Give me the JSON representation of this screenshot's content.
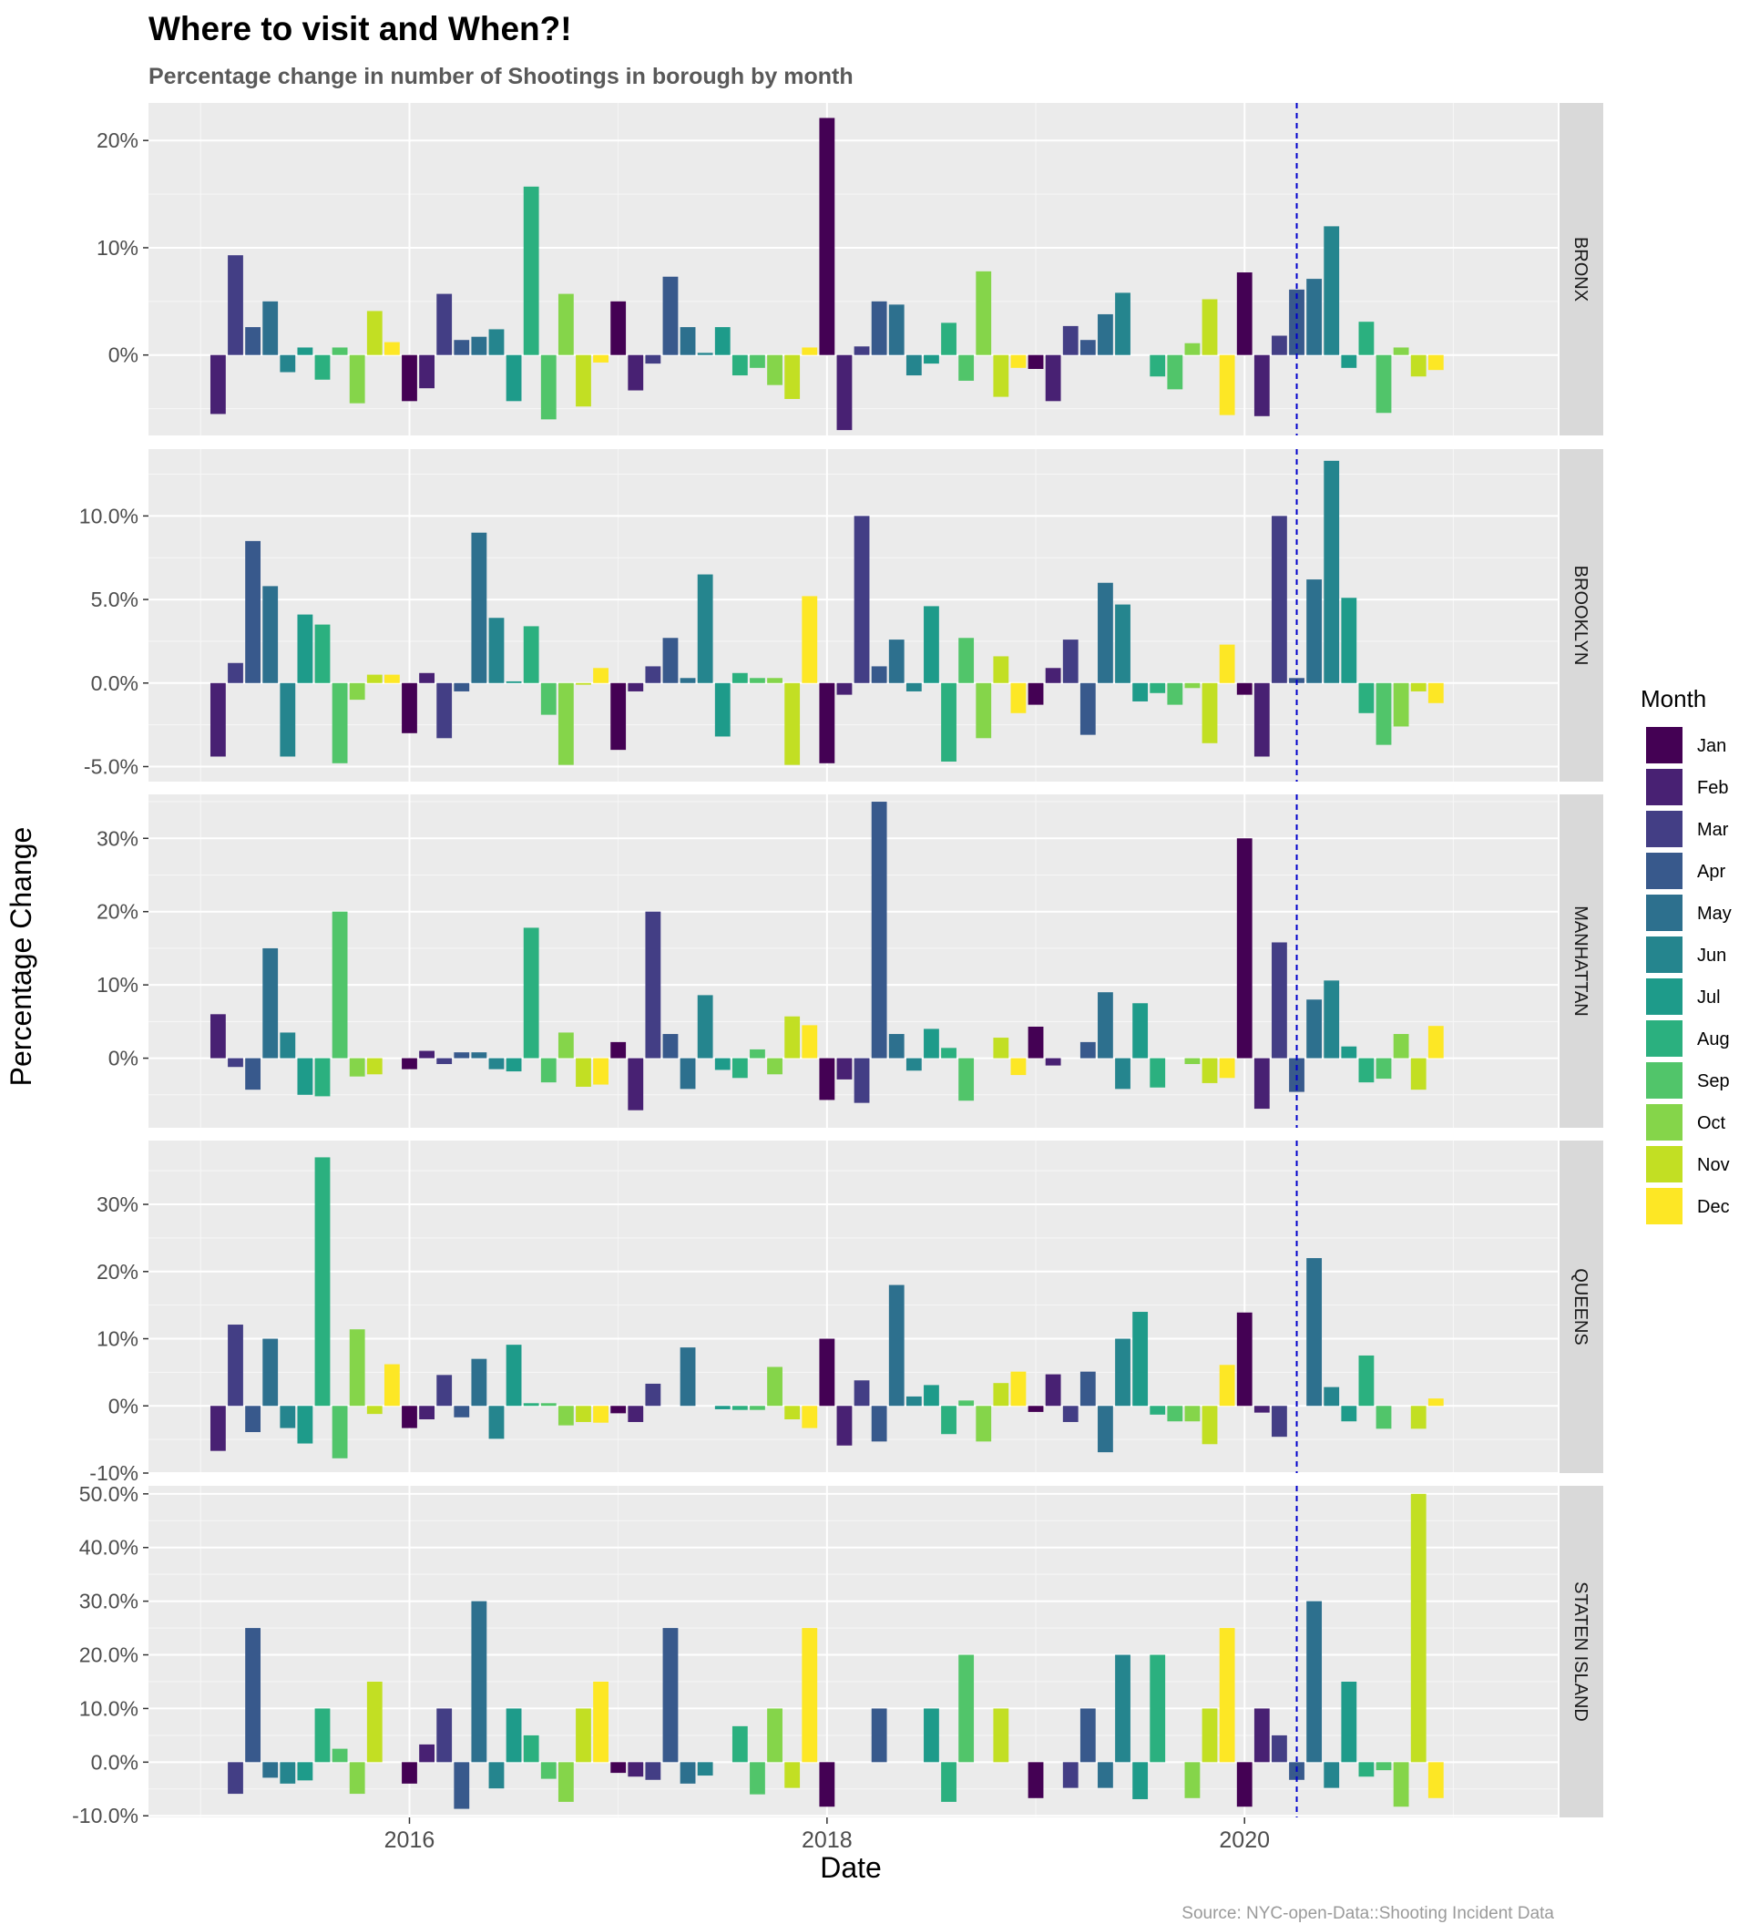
{
  "chart_data": {
    "type": "bar",
    "title": "Where to visit and When?!",
    "subtitle": "Percentage change in number of Shootings in borough by month",
    "xlabel": "Date",
    "ylabel": "Percentage Change",
    "caption": "Source: NYC-open-Data::Shooting Incident Data",
    "legend": {
      "title": "Month",
      "position": "right",
      "months": [
        "Jan",
        "Feb",
        "Mar",
        "Apr",
        "May",
        "Jun",
        "Jul",
        "Aug",
        "Sep",
        "Oct",
        "Nov",
        "Dec"
      ],
      "colors": [
        "#440154",
        "#482173",
        "#433E85",
        "#38598C",
        "#2D708E",
        "#25858E",
        "#1E9B8A",
        "#2BB07F",
        "#51C56A",
        "#85D54A",
        "#C2DF23",
        "#FDE725"
      ]
    },
    "x_ticks": [
      2016,
      2018,
      2020
    ],
    "x_range": [
      2014.75,
      2021.5
    ],
    "reference_line": {
      "date": "2020-04",
      "style": "dashed",
      "color": "#0000cc"
    },
    "start_date": "2015-02",
    "panels": [
      {
        "name": "BRONX",
        "ylim": [
          -7.5,
          23.5
        ],
        "yticks": [
          0,
          10,
          20
        ],
        "yticklabels": [
          "0%",
          "10%",
          "20%"
        ],
        "values": [
          -5.5,
          9.3,
          2.6,
          5.0,
          -1.6,
          0.7,
          -2.3,
          0.7,
          -4.5,
          4.1,
          1.2,
          -4.3,
          -3.1,
          5.7,
          1.4,
          1.7,
          2.4,
          -4.3,
          15.7,
          -6.0,
          5.7,
          -4.8,
          -0.7,
          5.0,
          -3.3,
          -0.8,
          7.3,
          2.6,
          0.2,
          2.6,
          -1.9,
          -1.2,
          -2.8,
          -4.1,
          0.7,
          22.1,
          -7.0,
          0.8,
          5.0,
          4.7,
          -1.9,
          -0.8,
          3.0,
          -2.4,
          7.8,
          -3.9,
          -1.2,
          -1.3,
          -4.3,
          2.7,
          1.4,
          3.8,
          5.8,
          0.0,
          -2.0,
          -3.2,
          1.1,
          5.2,
          -5.6,
          7.7,
          -5.7,
          1.8,
          6.1,
          7.1,
          12.0,
          -1.2,
          3.1,
          -5.4,
          0.7,
          -2.0,
          -1.4
        ]
      },
      {
        "name": "BROOKLYN",
        "ylim": [
          -5.9,
          14.0
        ],
        "yticks": [
          -5,
          0,
          5,
          10
        ],
        "yticklabels": [
          "-5.0%",
          "0.0%",
          "5.0%",
          "10.0%"
        ],
        "values": [
          -4.4,
          1.2,
          8.5,
          5.8,
          -4.4,
          4.1,
          3.5,
          -4.8,
          -1.0,
          0.5,
          0.5,
          -3.0,
          0.6,
          -3.3,
          -0.5,
          9.0,
          3.9,
          0.1,
          3.4,
          -1.9,
          -4.9,
          -0.1,
          0.9,
          -4.0,
          -0.5,
          1.0,
          2.7,
          0.3,
          6.5,
          -3.2,
          0.6,
          0.3,
          0.3,
          -4.9,
          5.2,
          -4.8,
          -0.7,
          10.0,
          1.0,
          2.6,
          -0.5,
          4.6,
          -4.7,
          2.7,
          -3.3,
          1.6,
          -1.8,
          -1.3,
          0.9,
          2.6,
          -3.1,
          6.0,
          4.7,
          -1.1,
          -0.6,
          -1.3,
          -0.3,
          -3.6,
          2.3,
          -0.7,
          -4.4,
          10.0,
          0.3,
          6.2,
          13.3,
          5.1,
          -1.8,
          -3.7,
          -2.6,
          -0.5,
          -1.2
        ]
      },
      {
        "name": "MANHATTAN",
        "ylim": [
          -9.5,
          36.0
        ],
        "yticks": [
          0,
          10,
          20,
          30
        ],
        "yticklabels": [
          "0%",
          "10%",
          "20%",
          "30%"
        ],
        "values": [
          6.0,
          -1.2,
          -4.3,
          15.0,
          3.5,
          -5.0,
          -5.2,
          20.0,
          -2.5,
          -2.2,
          0.0,
          -1.5,
          1.0,
          -0.8,
          0.8,
          0.8,
          -1.5,
          -1.8,
          17.8,
          -3.3,
          3.5,
          -3.9,
          -3.6,
          2.2,
          -7.1,
          20.0,
          3.3,
          -4.2,
          8.6,
          -1.6,
          -2.7,
          1.2,
          -2.2,
          5.7,
          4.5,
          -5.7,
          -2.9,
          -6.1,
          35.0,
          3.3,
          -1.7,
          4.0,
          1.4,
          -5.8,
          0.0,
          2.8,
          -2.3,
          4.3,
          -1.0,
          0.0,
          2.2,
          9.0,
          -4.2,
          7.5,
          -4.0,
          0.0,
          -0.8,
          -3.4,
          -2.7,
          30.0,
          -6.9,
          15.8,
          -4.6,
          8.0,
          10.6,
          1.6,
          -3.3,
          -2.8,
          3.3,
          -4.3,
          4.4
        ]
      },
      {
        "name": "QUEENS",
        "ylim": [
          -10.0,
          39.5
        ],
        "yticks": [
          -10,
          0,
          10,
          20,
          30
        ],
        "yticklabels": [
          "-10%",
          "0%",
          "10%",
          "20%",
          "30%"
        ],
        "values": [
          -6.7,
          12.1,
          -3.9,
          10.0,
          -3.3,
          -5.6,
          37.0,
          -7.8,
          11.4,
          -1.2,
          6.2,
          -3.3,
          -2.0,
          4.6,
          -1.7,
          7.0,
          -4.9,
          9.1,
          0.4,
          0.4,
          -2.9,
          -2.4,
          -2.5,
          -1.1,
          -2.4,
          3.3,
          0.0,
          8.7,
          0.0,
          -0.5,
          -0.6,
          -0.6,
          5.8,
          -2.0,
          -3.3,
          10.0,
          -5.9,
          3.8,
          -5.3,
          18.0,
          1.4,
          3.1,
          -4.2,
          0.8,
          -5.3,
          3.4,
          5.1,
          -0.9,
          4.7,
          -2.4,
          5.1,
          -6.9,
          10.0,
          14.0,
          -1.3,
          -2.3,
          -2.3,
          -5.7,
          6.1,
          13.9,
          -1.0,
          -4.6,
          0.0,
          22.0,
          2.8,
          -2.3,
          7.5,
          -3.4,
          0.0,
          -3.4,
          1.1
        ]
      },
      {
        "name": "STATEN ISLAND",
        "ylim": [
          -10.3,
          51.5
        ],
        "yticks": [
          -10,
          0,
          10,
          20,
          30,
          40,
          50
        ],
        "yticklabels": [
          "-10.0%",
          "0.0%",
          "10.0%",
          "20.0%",
          "30.0%",
          "40.0%",
          "50.0%"
        ],
        "values": [
          0.0,
          -5.9,
          25.0,
          -2.9,
          -4.0,
          -3.4,
          10.0,
          2.5,
          -5.9,
          15.0,
          0.0,
          -4.0,
          3.3,
          10.0,
          -8.7,
          30.0,
          -4.9,
          10.0,
          5.0,
          -3.1,
          -7.4,
          10.0,
          15.0,
          -2.0,
          -2.7,
          -3.3,
          25.0,
          -4.0,
          -2.5,
          0.0,
          6.7,
          -6.0,
          10.0,
          -4.8,
          25.0,
          -8.3,
          0.0,
          0.0,
          10.0,
          0.0,
          0.0,
          10.0,
          -7.4,
          20.0,
          0.0,
          10.0,
          0.0,
          -6.7,
          0.0,
          -4.8,
          10.0,
          -4.8,
          20.0,
          -6.9,
          20.0,
          0.0,
          -6.7,
          10.0,
          25.0,
          -8.3,
          10.0,
          5.0,
          -3.3,
          30.0,
          -4.8,
          15.0,
          -2.7,
          -1.5,
          -8.3,
          50.0,
          -6.7
        ]
      }
    ]
  }
}
